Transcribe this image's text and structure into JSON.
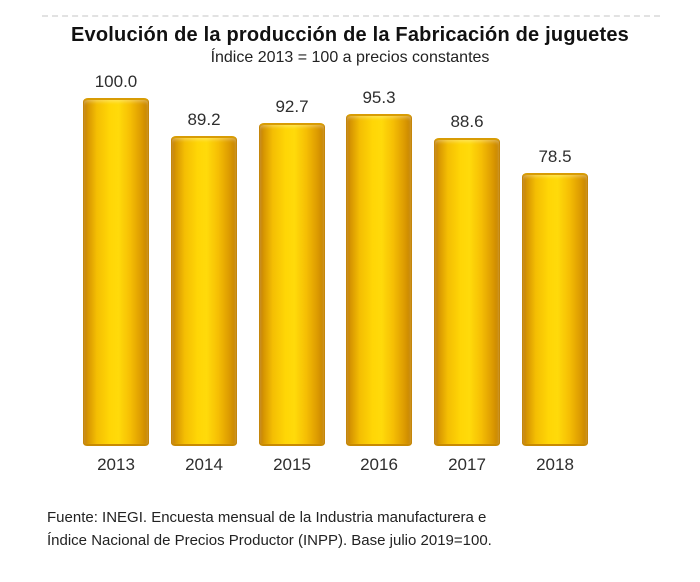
{
  "page": {
    "background": "#ffffff"
  },
  "chart_data": {
    "type": "bar",
    "title": "Evolución de la producción de la Fabricación de juguetes",
    "subtitle": "Índice 2013 = 100 a precios constantes",
    "categories": [
      "2013",
      "2014",
      "2015",
      "2016",
      "2017",
      "2018"
    ],
    "values": [
      100.0,
      89.2,
      92.7,
      95.3,
      88.6,
      78.5
    ],
    "value_labels": [
      "100.0",
      "89.2",
      "92.7",
      "95.3",
      "88.6",
      "78.5"
    ],
    "xlabel": "",
    "ylabel": "",
    "ylim": [
      0,
      100
    ],
    "grid": false,
    "legend": "none",
    "bar_style": {
      "type": "cylinder-gradient",
      "edge_color": "#c48302",
      "highlight_color": "#ffd906",
      "border_color": "#c5860a"
    }
  },
  "source": {
    "line1": "Fuente: INEGI. Encuesta mensual de la Industria manufacturera e",
    "line2": "Índice Nacional de Precios Productor (INPP). Base julio 2019=100."
  }
}
